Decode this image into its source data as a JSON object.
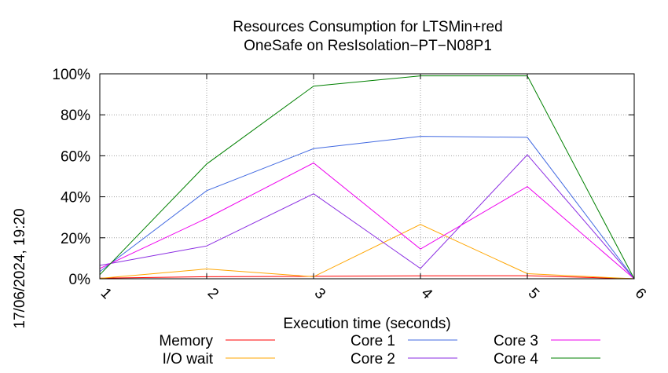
{
  "side_label": "17/06/2024, 19:20",
  "chart_data": {
    "type": "line",
    "title": [
      "Resources Consumption for LTSMin+red",
      "OneSafe on ResIsolation−PT−N08P1"
    ],
    "xlabel": "Execution time (seconds)",
    "ylabel": "",
    "x": [
      1,
      2,
      3,
      4,
      5,
      6
    ],
    "xticks": [
      "1",
      "2",
      "3",
      "4",
      "5",
      "6"
    ],
    "xlim": [
      1,
      6
    ],
    "ylim": [
      0,
      100
    ],
    "yticks": [
      0,
      20,
      40,
      60,
      80,
      100
    ],
    "ytick_labels": [
      "0%",
      "20%",
      "40%",
      "60%",
      "80%",
      "100%"
    ],
    "grid": true,
    "legend_position": "bottom",
    "series": [
      {
        "name": "Memory",
        "color": "#ff0000",
        "values": [
          0.3,
          1,
          1.2,
          1.4,
          1.5,
          0
        ]
      },
      {
        "name": "I/O wait",
        "color": "#ffa500",
        "values": [
          0.2,
          4.8,
          1,
          26.5,
          2.5,
          0
        ]
      },
      {
        "name": "Core 1",
        "color": "#4169e1",
        "values": [
          3.5,
          43,
          63.5,
          69.5,
          69,
          0
        ]
      },
      {
        "name": "Core 2",
        "color": "#8a2be2",
        "values": [
          6.5,
          16,
          41.5,
          5,
          60.5,
          0
        ]
      },
      {
        "name": "Core 3",
        "color": "#ee00ee",
        "values": [
          5,
          29.5,
          56.5,
          14.5,
          45,
          0
        ]
      },
      {
        "name": "Core 4",
        "color": "#008000",
        "values": [
          2,
          56,
          94,
          99,
          99,
          0
        ]
      }
    ]
  }
}
